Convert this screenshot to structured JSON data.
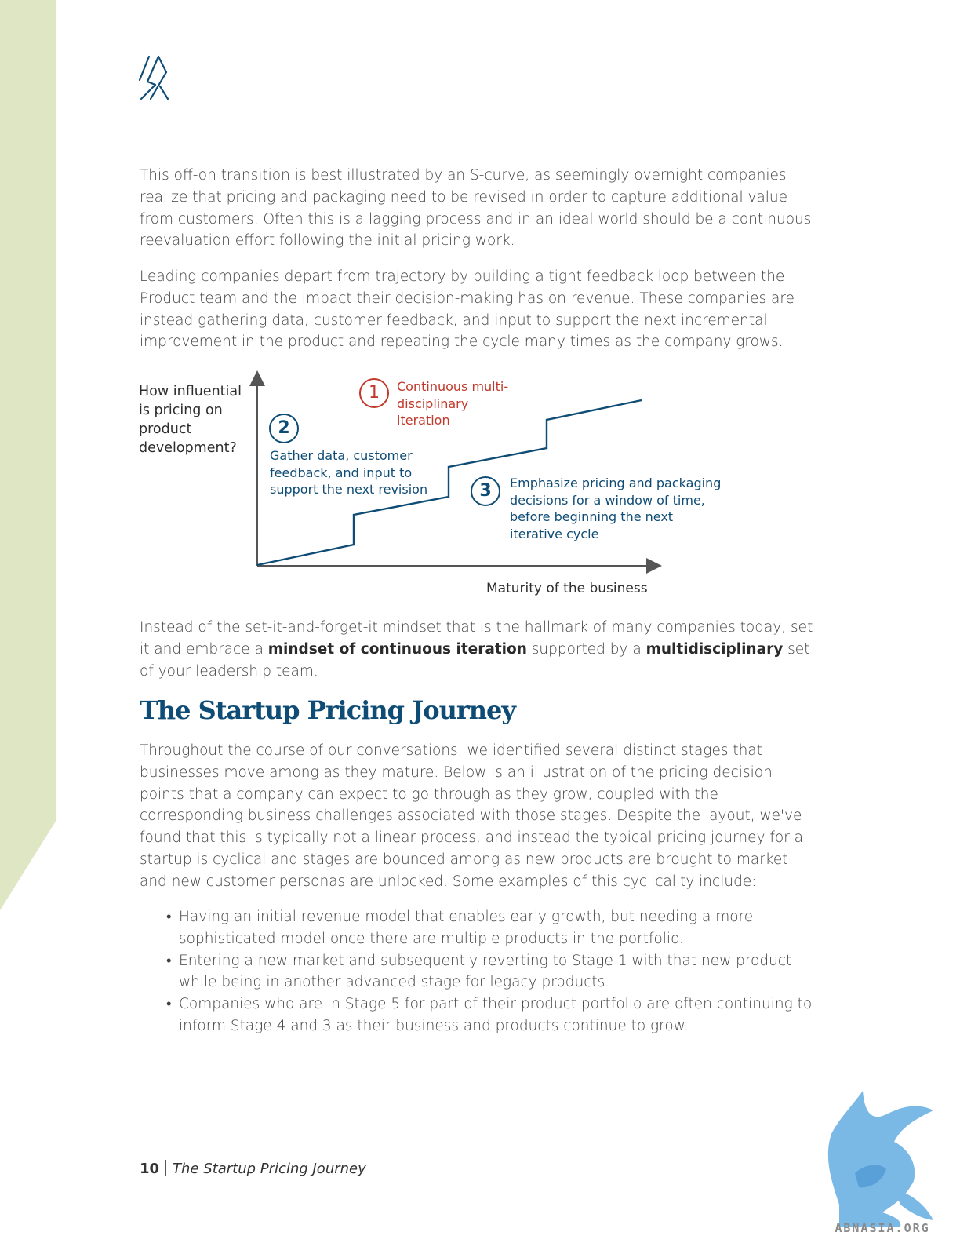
{
  "colors": {
    "sidebar": "#dfe6c4",
    "heading": "#0f4c75",
    "accent_red": "#c0392b",
    "accent_blue": "#0f4c75",
    "axis": "#555555",
    "watermark": "#7ab8e6"
  },
  "logo": {
    "icon": "double-slash-logo-icon"
  },
  "intro": {
    "p1": "This off-on transition is best illustrated by an S-curve, as seemingly overnight companies realize that pricing and packaging need to be revised in order to capture additional value from customers. Often this is a lagging process and in an ideal world should be a continuous reevaluation effort following the initial pricing work.",
    "p2": "Leading companies depart from trajectory by building a tight feedback loop between the Product team and the impact their decision-making has on revenue. These companies are instead gathering data, customer feedback, and input to support the next incremental improvement in the product and repeating the cycle many times as the company grows."
  },
  "diagram": {
    "ylabel": "How influential is pricing on product development?",
    "xlabel": "Maturity of the business",
    "annotations": [
      {
        "number": "1",
        "text": "Continuous multi-disciplinary iteration"
      },
      {
        "number": "2",
        "text": "Gather data, customer feedback, and input to support the next revision"
      },
      {
        "number": "3",
        "text": "Emphasize pricing and packaging decisions for a window of time, before beginning the next iterative cycle"
      }
    ]
  },
  "mindset": {
    "before": "Instead of the set-it-and-forget-it mindset that is the hallmark of many companies today, set it and embrace a ",
    "bold1": "mindset of continuous iteration",
    "middle": " supported by a ",
    "bold2": "multidisciplinary",
    "after": " set of your leadership team."
  },
  "section": {
    "heading": "The Startup Pricing Journey",
    "body": "Throughout the course of our conversations, we identified several distinct stages that businesses move among as they mature. Below is an illustration of the pricing decision points that a company can expect to go through as they grow, coupled with the corresponding business challenges associated with those stages. Despite the layout, we've found that this is typically not a linear process, and instead the typical pricing journey for a startup is cyclical and stages are bounced among as new products are brought to market and new customer personas are unlocked. Some examples of this cyclicality include:",
    "bullets": [
      "Having an initial revenue model that enables early growth, but needing a more sophisticated model once there are multiple products in the portfolio.",
      "Entering a new market and subsequently reverting to Stage 1 with that new product while being in another advanced stage for legacy products.",
      "Companies who are in Stage 5 for part of their product portfolio are often continuing to inform Stage 4 and 3 as their business and products continue to grow."
    ]
  },
  "footer": {
    "page_number": "10",
    "title": "The Startup Pricing Journey"
  },
  "watermark": {
    "icon": "griffin-watermark-icon",
    "text": "ABNASIA.ORG"
  }
}
